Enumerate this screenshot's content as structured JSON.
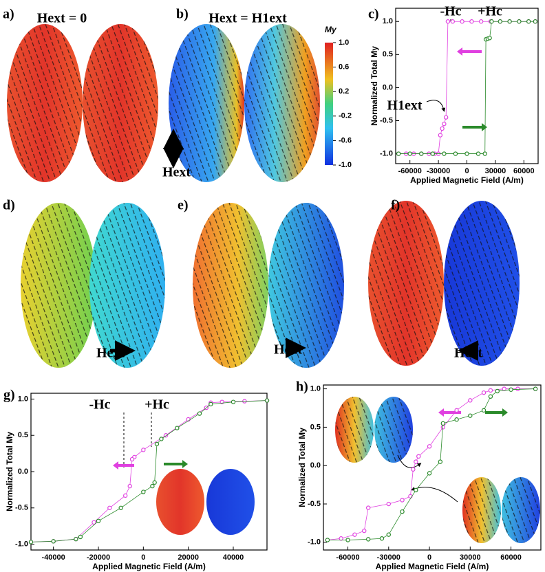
{
  "panels": [
    {
      "label": "a)",
      "texts": [
        "Hext = 0",
        "Hext"
      ]
    },
    {
      "label": "b)",
      "texts": [
        "Hext = H1ext"
      ]
    },
    {
      "label": "d)",
      "texts": [
        "Hext"
      ]
    },
    {
      "label": "e)",
      "texts": [
        "Hext"
      ]
    },
    {
      "label": "f)",
      "texts": [
        "Hext"
      ]
    }
  ],
  "colorbar": {
    "title": "My",
    "lim": [
      -1,
      1
    ],
    "ticks": [
      {
        "value": 1,
        "label": "1.0"
      },
      {
        "value": 0.6,
        "label": "0.6"
      },
      {
        "value": 0.2,
        "label": "0.2"
      },
      {
        "value": -0.2,
        "label": "-0.2"
      },
      {
        "value": -0.6,
        "label": "-0.6"
      },
      {
        "value": -1,
        "label": "-1.0"
      }
    ]
  },
  "chart_data": [
    {
      "type": "scatter",
      "label": "c)",
      "ylabel": "Normalized Total My",
      "xlabel": "Applied Magnetic Field (A/m)",
      "annotations": [
        "-Hc",
        "+Hc",
        "H1ext"
      ],
      "xlim": [
        -75000,
        75000
      ],
      "ylim": [
        -1.15,
        1.2
      ],
      "xticks": [
        -60000,
        -30000,
        0,
        30000,
        60000
      ],
      "yticks": [
        {
          "value": -1,
          "label": "-1.0"
        },
        {
          "value": -0.5,
          "label": "-0.5"
        },
        {
          "value": 0,
          "label": "0.0"
        },
        {
          "value": 0.5,
          "label": "0.5"
        },
        {
          "value": 1,
          "label": "1.0"
        }
      ],
      "series": [
        {
          "color": "#e040e0",
          "x": [
            -72000,
            -64000,
            -56000,
            -48000,
            -40000,
            -34000,
            -30000,
            -28000,
            -26000,
            -24000,
            -22000,
            -20000,
            -15000,
            -5000,
            5000,
            15000,
            25000,
            35000,
            45000,
            55000,
            65000,
            72000
          ],
          "values": [
            -1,
            -1,
            -1,
            -1,
            -1,
            -1,
            -1,
            -0.72,
            -0.62,
            -0.55,
            -0.45,
            1,
            1,
            1,
            1,
            1,
            1,
            1,
            1,
            1,
            1,
            1
          ]
        },
        {
          "color": "#2a8a2a",
          "x": [
            -72000,
            -60000,
            -48000,
            -36000,
            -24000,
            -12000,
            0,
            12000,
            19000,
            20000,
            22000,
            24000,
            26000,
            35000,
            45000,
            55000,
            65000,
            72000
          ],
          "values": [
            -1,
            -1,
            -1,
            -1,
            -1,
            -1,
            -1,
            -1,
            -1,
            0.73,
            0.74,
            0.75,
            1,
            1,
            1,
            1,
            1,
            1
          ]
        }
      ]
    },
    {
      "type": "scatter",
      "label": "g)",
      "ylabel": "Normalized Total My",
      "xlabel": "Applied Magnetic Field (A/m)",
      "annotations": [
        "-Hc",
        "+Hc"
      ],
      "xlim": [
        -50000,
        55000
      ],
      "ylim": [
        -1.08,
        1.08
      ],
      "xticks": [
        -40000,
        -20000,
        0,
        20000,
        40000
      ],
      "yticks": [
        {
          "value": -1,
          "label": "-1.0"
        },
        {
          "value": -0.5,
          "label": "-0.5"
        },
        {
          "value": 0,
          "label": "0.0"
        },
        {
          "value": 0.5,
          "label": "0.5"
        },
        {
          "value": 1,
          "label": "1.0"
        }
      ],
      "series": [
        {
          "color": "#e040e0",
          "x": [
            55000,
            45000,
            35000,
            30000,
            28000,
            20000,
            10000,
            0,
            -4000,
            -5000,
            -6000,
            -8000,
            -15000,
            -22000,
            -30000,
            -40000,
            -50000
          ],
          "values": [
            0.98,
            0.97,
            0.96,
            0.95,
            0.88,
            0.72,
            0.5,
            0.3,
            0.2,
            0.17,
            -0.2,
            -0.33,
            -0.5,
            -0.7,
            -0.93,
            -0.96,
            -0.97
          ]
        },
        {
          "color": "#2a8a2a",
          "x": [
            -50000,
            -40000,
            -30000,
            -28000,
            -20000,
            -10000,
            0,
            4000,
            5000,
            6000,
            8000,
            15000,
            25000,
            30000,
            40000,
            55000
          ],
          "values": [
            -0.97,
            -0.96,
            -0.93,
            -0.9,
            -0.68,
            -0.5,
            -0.28,
            -0.2,
            -0.15,
            0.38,
            0.45,
            0.6,
            0.8,
            0.93,
            0.96,
            0.98
          ]
        }
      ]
    },
    {
      "type": "scatter",
      "label": "h)",
      "ylabel": "Normalized Total My",
      "xlabel": "Applied Magnetic Field (A/m)",
      "annotations": [],
      "xlim": [
        -78000,
        82000
      ],
      "ylim": [
        -1.1,
        1.05
      ],
      "xticks": [
        -60000,
        -30000,
        0,
        30000,
        60000
      ],
      "yticks": [
        {
          "value": -1,
          "label": "-1.0"
        },
        {
          "value": -0.5,
          "label": "-0.5"
        },
        {
          "value": 0,
          "label": "0.0"
        },
        {
          "value": 0.5,
          "label": "0.5"
        },
        {
          "value": 1,
          "label": "1.0"
        }
      ],
      "series": [
        {
          "color": "#e040e0",
          "x": [
            78000,
            65000,
            55000,
            45000,
            40000,
            30000,
            20000,
            10000,
            0,
            -8000,
            -10000,
            -12000,
            -14000,
            -20000,
            -30000,
            -45000,
            -48000,
            -55000,
            -65000,
            -75000
          ],
          "values": [
            1,
            1,
            1,
            0.98,
            0.95,
            0.85,
            0.72,
            0.5,
            0.25,
            0.12,
            0.05,
            -0.05,
            -0.4,
            -0.45,
            -0.5,
            -0.55,
            -0.85,
            -0.9,
            -0.95,
            -0.97
          ]
        },
        {
          "color": "#2a8a2a",
          "x": [
            -75000,
            -60000,
            -45000,
            -35000,
            -30000,
            -20000,
            -10000,
            0,
            8000,
            10000,
            20000,
            30000,
            40000,
            45000,
            50000,
            60000,
            78000
          ],
          "values": [
            -0.97,
            -0.97,
            -0.96,
            -0.95,
            -0.9,
            -0.6,
            -0.32,
            -0.1,
            0.05,
            0.55,
            0.6,
            0.65,
            0.72,
            0.9,
            0.97,
            0.99,
            1
          ]
        }
      ]
    }
  ]
}
